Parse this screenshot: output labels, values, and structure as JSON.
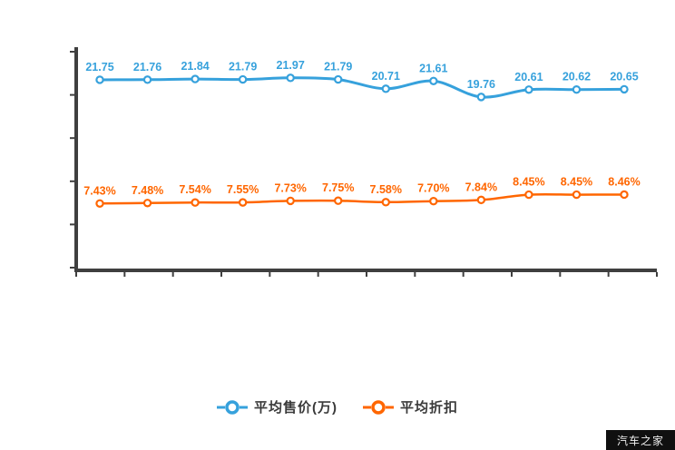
{
  "watermark": "汽车之家",
  "colors": {
    "series1": "#36a1dc",
    "series2": "#ff6600",
    "axis": "#3f3f3f",
    "legend_text": "#3a3a3a",
    "marker_fill": "#ffffff"
  },
  "legend": {
    "series1_label": "平均售价(万)",
    "series2_label": "平均折扣"
  },
  "chart_data": {
    "type": "line",
    "title": "",
    "xlabel": "",
    "ylabel": "",
    "ylim": [
      0,
      25
    ],
    "y_ticks": [
      0,
      5,
      10,
      15,
      20,
      25
    ],
    "x_point_count": 12,
    "grid": false,
    "legend_position": "bottom",
    "series": [
      {
        "name": "平均售价(万)",
        "color": "#36a1dc",
        "values": [
          21.75,
          21.76,
          21.84,
          21.79,
          21.97,
          21.79,
          20.71,
          21.61,
          19.76,
          20.61,
          20.62,
          20.65
        ],
        "labels": [
          "21.75",
          "21.76",
          "21.84",
          "21.79",
          "21.97",
          "21.79",
          "20.71",
          "21.61",
          "19.76",
          "20.61",
          "20.62",
          "20.65"
        ]
      },
      {
        "name": "平均折扣",
        "color": "#ff6600",
        "values": [
          7.43,
          7.48,
          7.54,
          7.55,
          7.73,
          7.75,
          7.58,
          7.7,
          7.84,
          8.45,
          8.45,
          8.46
        ],
        "labels": [
          "7.43%",
          "7.48%",
          "7.54%",
          "7.55%",
          "7.73%",
          "7.75%",
          "7.58%",
          "7.70%",
          "7.84%",
          "8.45%",
          "8.45%",
          "8.46%"
        ]
      }
    ]
  }
}
